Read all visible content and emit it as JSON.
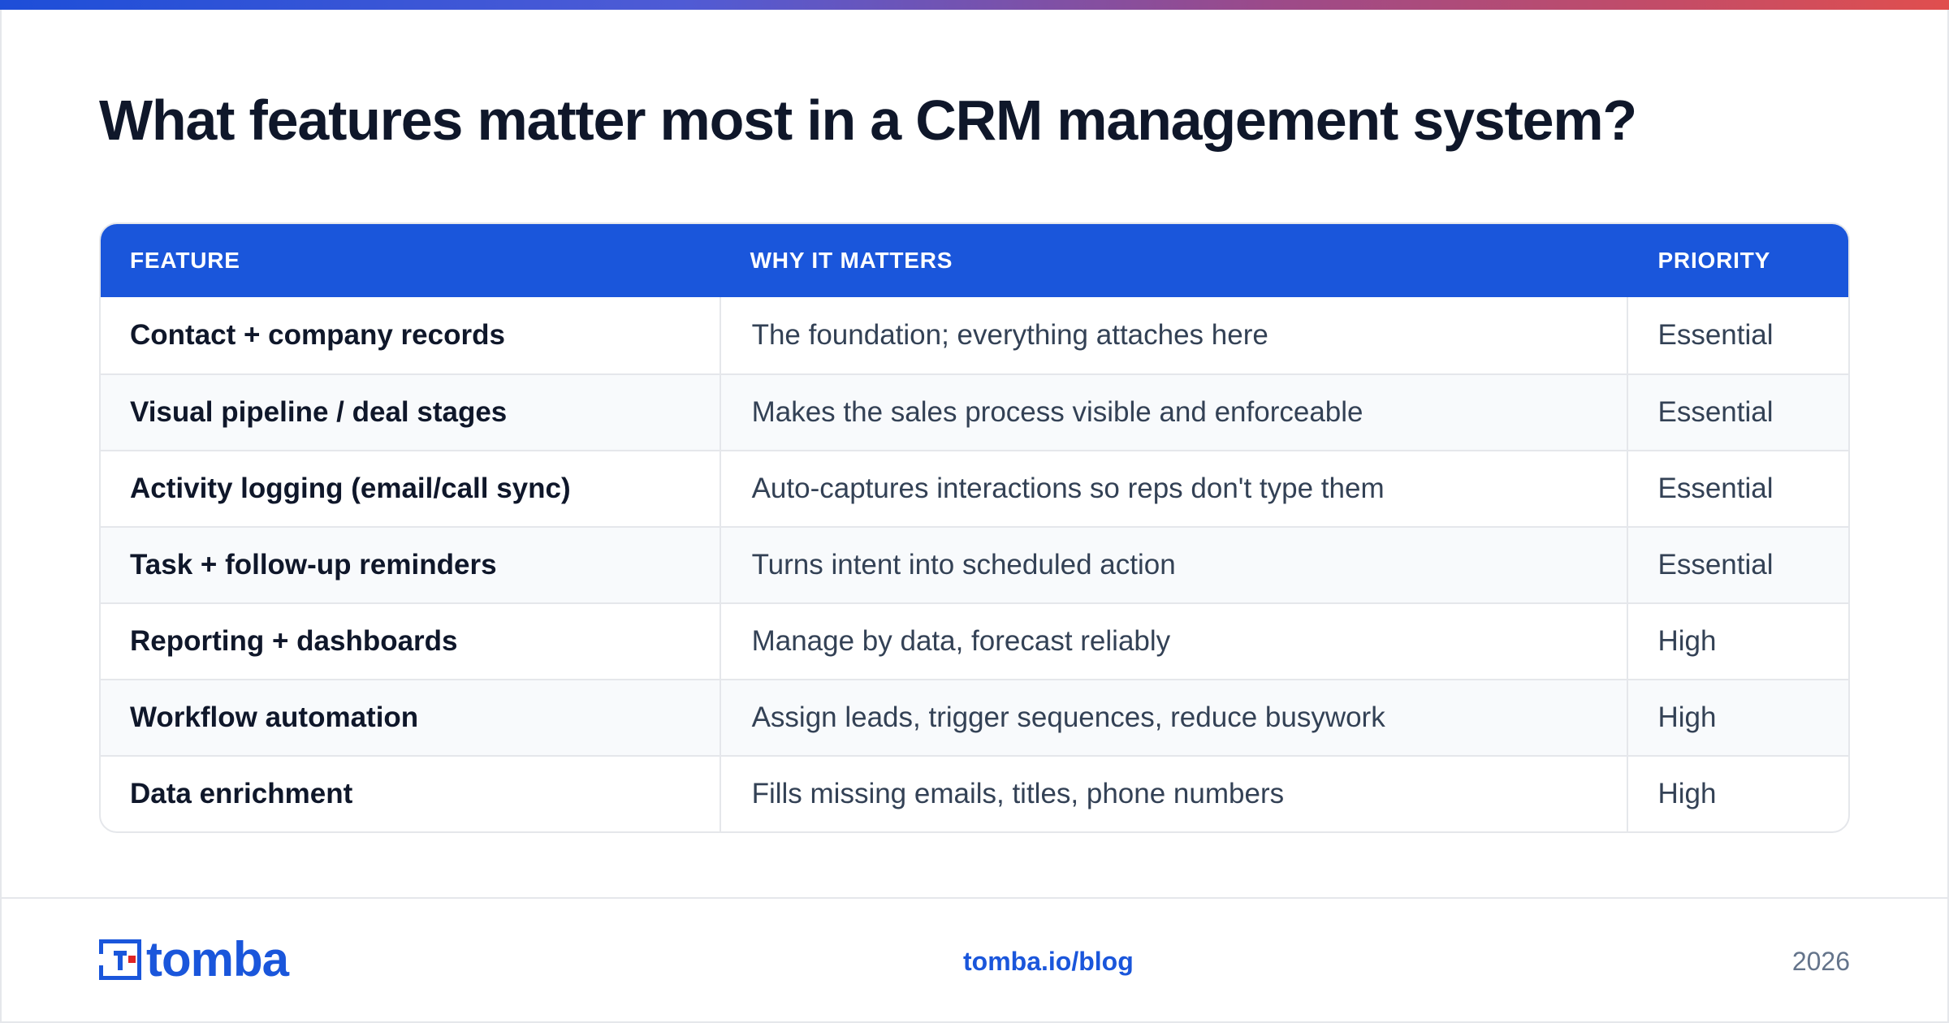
{
  "title": "What features matter most in a CRM management system?",
  "table": {
    "headers": [
      "FEATURE",
      "WHY IT MATTERS",
      "PRIORITY"
    ],
    "rows": [
      {
        "feature": "Contact + company records",
        "why": "The foundation; everything attaches here",
        "priority": "Essential"
      },
      {
        "feature": "Visual pipeline / deal stages",
        "why": "Makes the sales process visible and enforceable",
        "priority": "Essential"
      },
      {
        "feature": "Activity logging (email/call sync)",
        "why": "Auto-captures interactions so reps don't type them",
        "priority": "Essential"
      },
      {
        "feature": "Task + follow-up reminders",
        "why": "Turns intent into scheduled action",
        "priority": "Essential"
      },
      {
        "feature": "Reporting + dashboards",
        "why": "Manage by data, forecast reliably",
        "priority": "High"
      },
      {
        "feature": "Workflow automation",
        "why": "Assign leads, trigger sequences, reduce busywork",
        "priority": "High"
      },
      {
        "feature": "Data enrichment",
        "why": "Fills missing emails, titles, phone numbers",
        "priority": "High"
      }
    ]
  },
  "footer": {
    "logo_text": "tomba",
    "link": "tomba.io/blog",
    "year": "2026"
  },
  "colors": {
    "accent": "#1a56db",
    "logo_red": "#e02424",
    "header_bg": "#1a56db"
  },
  "icons": {
    "logo_mark": "tomba-logo-icon"
  }
}
